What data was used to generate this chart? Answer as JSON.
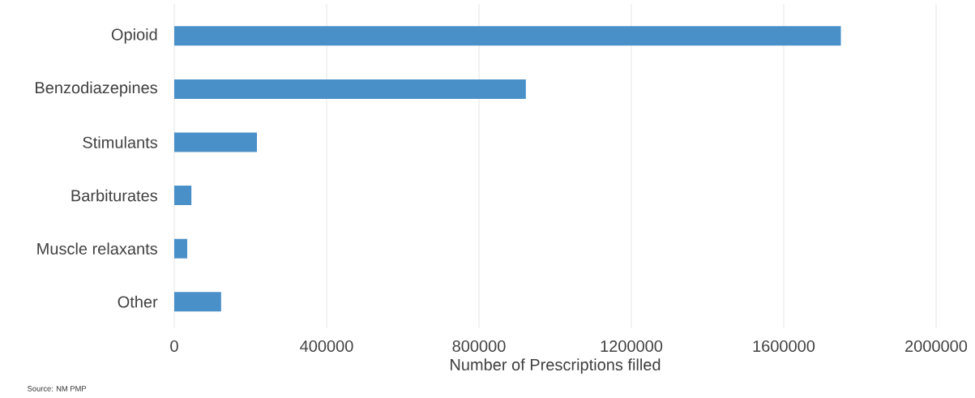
{
  "chart_data": {
    "type": "bar",
    "orientation": "horizontal",
    "categories": [
      "Opioid",
      "Benzodiazepines",
      "Stimulants",
      "Barbiturates",
      "Muscle relaxants",
      "Other"
    ],
    "values": [
      1750000,
      923000,
      217000,
      45000,
      34000,
      123000
    ],
    "color": "#4a90c8",
    "xlim": [
      0,
      2000000
    ],
    "xticks": [
      0,
      400000,
      800000,
      1200000,
      1600000,
      2000000
    ],
    "grid": "x",
    "xlabel": "Number of Prescriptions filled",
    "annotations": [
      "Source:  NM PMP"
    ]
  }
}
